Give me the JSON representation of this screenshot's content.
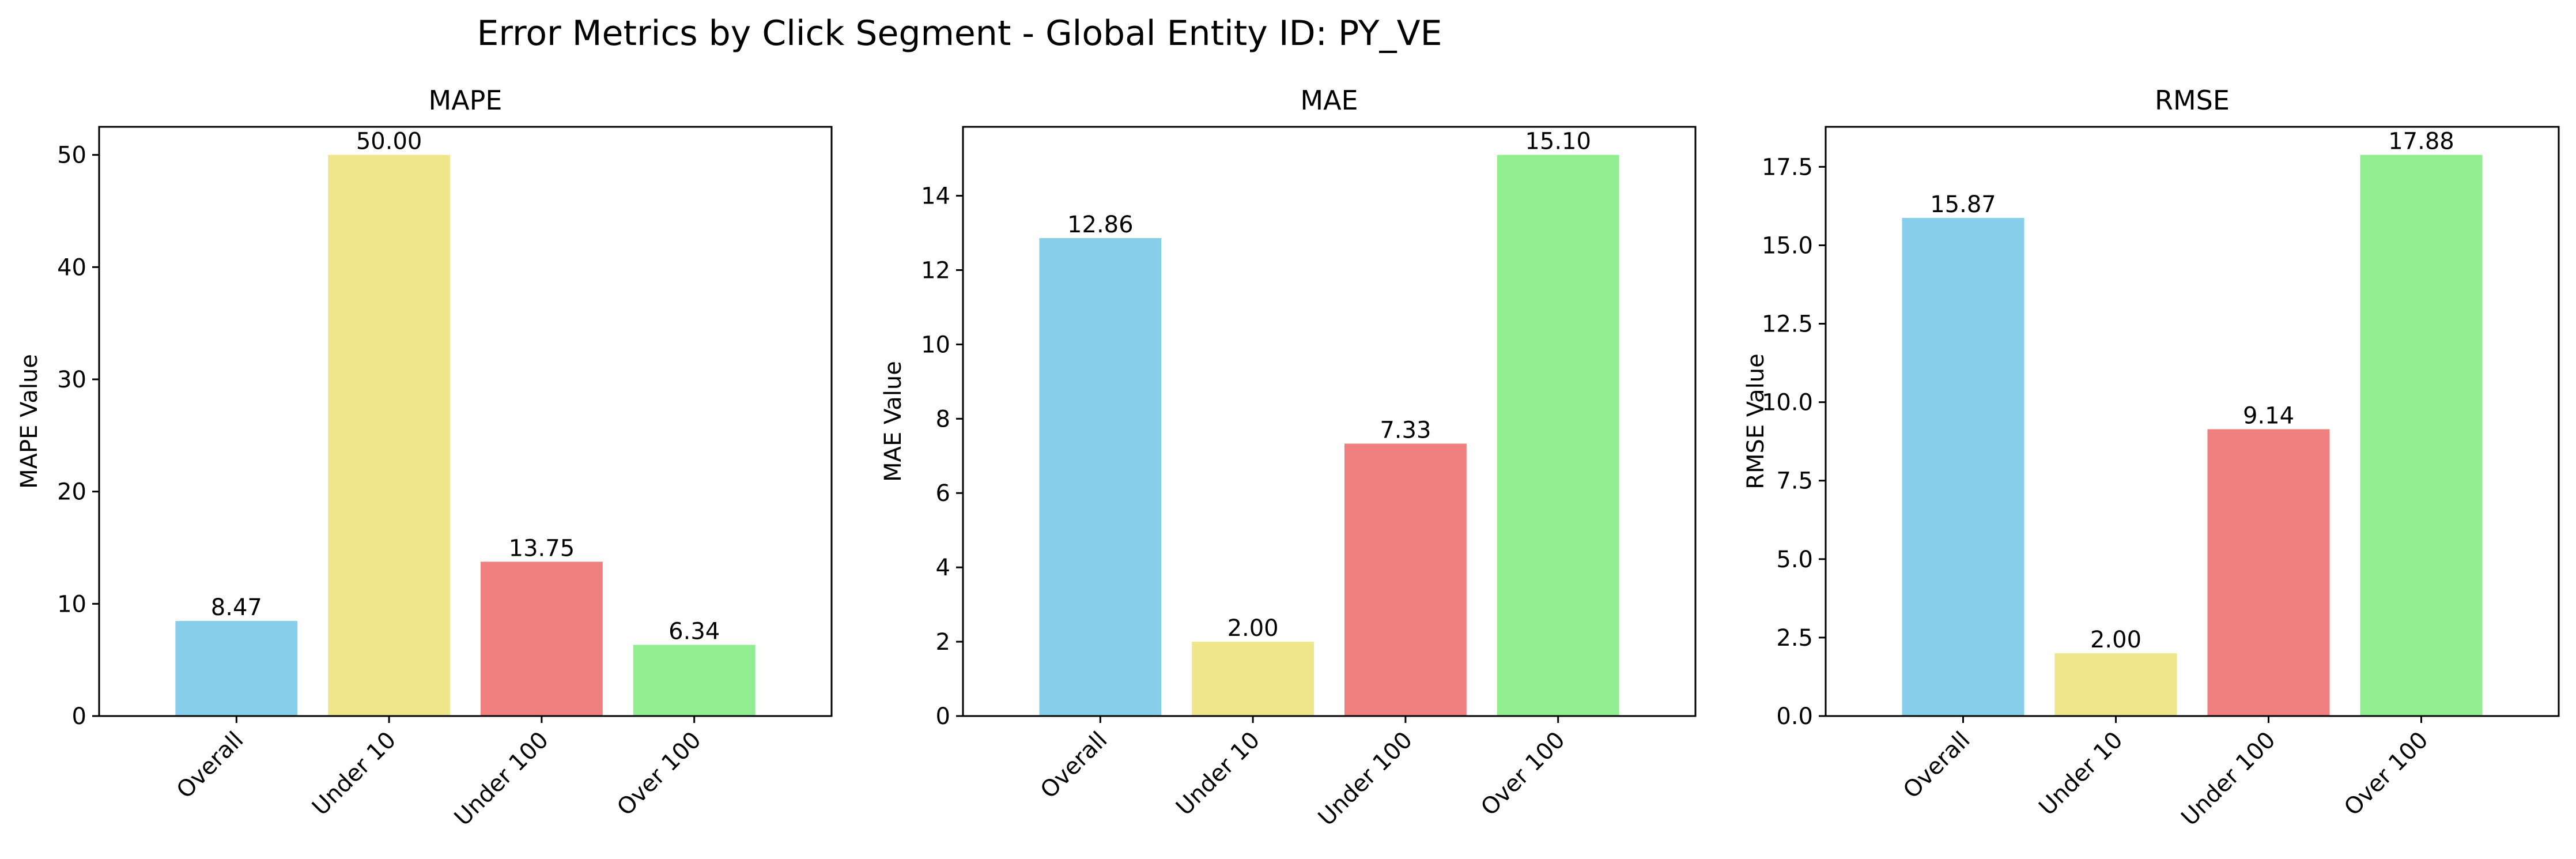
{
  "figure": {
    "suptitle": "Error Metrics by Click Segment - Global Entity ID: PY_VE"
  },
  "chart_data": [
    {
      "type": "bar",
      "title": "MAPE",
      "xlabel": "",
      "ylabel": "MAPE Value",
      "categories": [
        "Overall",
        "Under 10",
        "Under 100",
        "Over 100"
      ],
      "values": [
        8.47,
        50.0,
        13.75,
        6.34
      ],
      "value_labels": [
        "8.47",
        "50.00",
        "13.75",
        "6.34"
      ],
      "colors": [
        "#87CEEB",
        "#F0E68C",
        "#F08080",
        "#90EE90"
      ],
      "ylim": [
        0,
        52.5
      ],
      "yticks": [
        0,
        10,
        20,
        30,
        40,
        50
      ],
      "ytick_labels": [
        "0",
        "10",
        "20",
        "30",
        "40",
        "50"
      ],
      "grid": false
    },
    {
      "type": "bar",
      "title": "MAE",
      "xlabel": "",
      "ylabel": "MAE Value",
      "categories": [
        "Overall",
        "Under 10",
        "Under 100",
        "Over 100"
      ],
      "values": [
        12.86,
        2.0,
        7.33,
        15.1
      ],
      "value_labels": [
        "12.86",
        "2.00",
        "7.33",
        "15.10"
      ],
      "colors": [
        "#87CEEB",
        "#F0E68C",
        "#F08080",
        "#90EE90"
      ],
      "ylim": [
        0,
        15.855
      ],
      "yticks": [
        0,
        2,
        4,
        6,
        8,
        10,
        12,
        14
      ],
      "ytick_labels": [
        "0",
        "2",
        "4",
        "6",
        "8",
        "10",
        "12",
        "14"
      ],
      "grid": false
    },
    {
      "type": "bar",
      "title": "RMSE",
      "xlabel": "",
      "ylabel": "RMSE Value",
      "categories": [
        "Overall",
        "Under 10",
        "Under 100",
        "Over 100"
      ],
      "values": [
        15.87,
        2.0,
        9.14,
        17.88
      ],
      "value_labels": [
        "15.87",
        "2.00",
        "9.14",
        "17.88"
      ],
      "colors": [
        "#87CEEB",
        "#F0E68C",
        "#F08080",
        "#90EE90"
      ],
      "ylim": [
        0,
        18.774
      ],
      "yticks": [
        0,
        2.5,
        5,
        7.5,
        10,
        12.5,
        15,
        17.5
      ],
      "ytick_labels": [
        "0.0",
        "2.5",
        "5.0",
        "7.5",
        "10.0",
        "12.5",
        "15.0",
        "17.5"
      ],
      "grid": false
    }
  ]
}
